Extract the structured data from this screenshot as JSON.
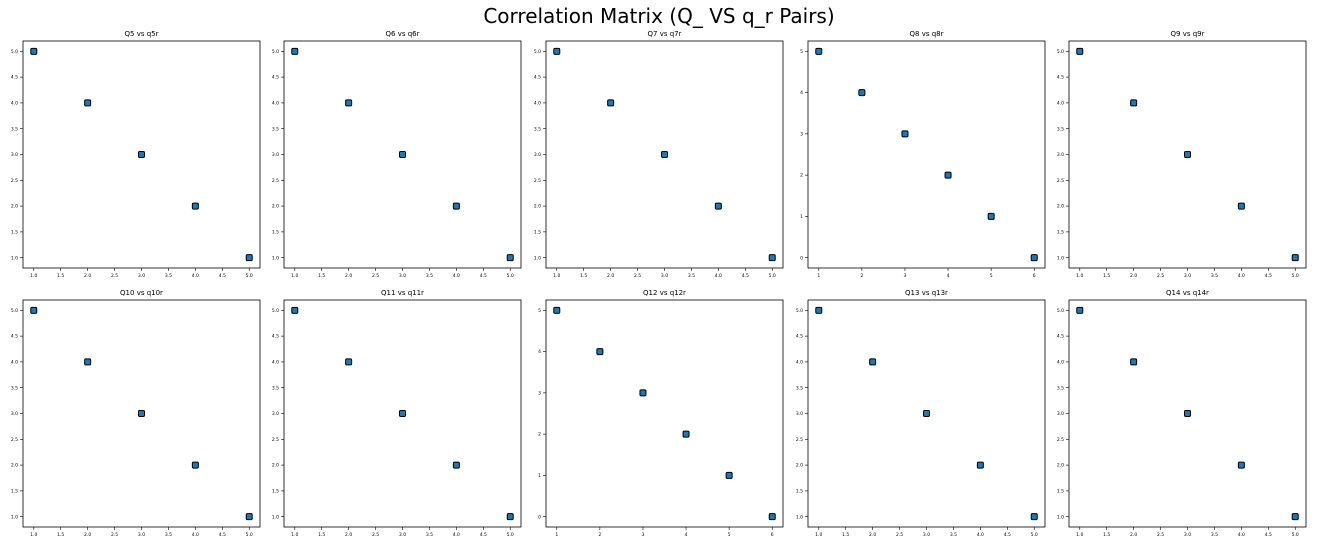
{
  "title": "Correlation Matrix (Q_ VS q_r Pairs)",
  "style": {
    "marker_color": "#1f77b4",
    "marker_edge": "#000000"
  },
  "chart_data": [
    {
      "type": "scatter",
      "title": "Q5 vs q5r",
      "x": [
        1,
        2,
        3,
        4,
        5
      ],
      "y": [
        5,
        4,
        3,
        2,
        1
      ],
      "xlim": [
        0.8,
        5.2
      ],
      "ylim": [
        0.8,
        5.2
      ],
      "xticks": [
        "1.0",
        "1.5",
        "2.0",
        "2.5",
        "3.0",
        "3.5",
        "4.0",
        "4.5",
        "5.0"
      ],
      "yticks": [
        "1.0",
        "1.5",
        "2.0",
        "2.5",
        "3.0",
        "3.5",
        "4.0",
        "4.5",
        "5.0"
      ]
    },
    {
      "type": "scatter",
      "title": "Q6 vs q6r",
      "x": [
        1,
        2,
        3,
        4,
        5
      ],
      "y": [
        5,
        4,
        3,
        2,
        1
      ],
      "xlim": [
        0.8,
        5.2
      ],
      "ylim": [
        0.8,
        5.2
      ],
      "xticks": [
        "1.0",
        "1.5",
        "2.0",
        "2.5",
        "3.0",
        "3.5",
        "4.0",
        "4.5",
        "5.0"
      ],
      "yticks": [
        "1.0",
        "1.5",
        "2.0",
        "2.5",
        "3.0",
        "3.5",
        "4.0",
        "4.5",
        "5.0"
      ]
    },
    {
      "type": "scatter",
      "title": "Q7 vs q7r",
      "x": [
        1,
        2,
        3,
        4,
        5
      ],
      "y": [
        5,
        4,
        3,
        2,
        1
      ],
      "xlim": [
        0.8,
        5.2
      ],
      "ylim": [
        0.8,
        5.2
      ],
      "xticks": [
        "1.0",
        "1.5",
        "2.0",
        "2.5",
        "3.0",
        "3.5",
        "4.0",
        "4.5",
        "5.0"
      ],
      "yticks": [
        "1.0",
        "1.5",
        "2.0",
        "2.5",
        "3.0",
        "3.5",
        "4.0",
        "4.5",
        "5.0"
      ]
    },
    {
      "type": "scatter",
      "title": "Q8 vs q8r",
      "x": [
        1,
        2,
        3,
        4,
        5,
        6
      ],
      "y": [
        5,
        4,
        3,
        2,
        1,
        0
      ],
      "xlim": [
        0.75,
        6.25
      ],
      "ylim": [
        -0.25,
        5.25
      ],
      "xticks": [
        "1",
        "2",
        "3",
        "4",
        "5",
        "6"
      ],
      "yticks": [
        "0",
        "1",
        "2",
        "3",
        "4",
        "5"
      ]
    },
    {
      "type": "scatter",
      "title": "Q9 vs q9r",
      "x": [
        1,
        2,
        3,
        4,
        5
      ],
      "y": [
        5,
        4,
        3,
        2,
        1
      ],
      "xlim": [
        0.8,
        5.2
      ],
      "ylim": [
        0.8,
        5.2
      ],
      "xticks": [
        "1.0",
        "1.5",
        "2.0",
        "2.5",
        "3.0",
        "3.5",
        "4.0",
        "4.5",
        "5.0"
      ],
      "yticks": [
        "1.0",
        "1.5",
        "2.0",
        "2.5",
        "3.0",
        "3.5",
        "4.0",
        "4.5",
        "5.0"
      ]
    },
    {
      "type": "scatter",
      "title": "Q10 vs q10r",
      "x": [
        1,
        2,
        3,
        4,
        5
      ],
      "y": [
        5,
        4,
        3,
        2,
        1
      ],
      "xlim": [
        0.8,
        5.2
      ],
      "ylim": [
        0.8,
        5.2
      ],
      "xticks": [
        "1.0",
        "1.5",
        "2.0",
        "2.5",
        "3.0",
        "3.5",
        "4.0",
        "4.5",
        "5.0"
      ],
      "yticks": [
        "1.0",
        "1.5",
        "2.0",
        "2.5",
        "3.0",
        "3.5",
        "4.0",
        "4.5",
        "5.0"
      ]
    },
    {
      "type": "scatter",
      "title": "Q11 vs q11r",
      "x": [
        1,
        2,
        3,
        4,
        5
      ],
      "y": [
        5,
        4,
        3,
        2,
        1
      ],
      "xlim": [
        0.8,
        5.2
      ],
      "ylim": [
        0.8,
        5.2
      ],
      "xticks": [
        "1.0",
        "1.5",
        "2.0",
        "2.5",
        "3.0",
        "3.5",
        "4.0",
        "4.5",
        "5.0"
      ],
      "yticks": [
        "1.0",
        "1.5",
        "2.0",
        "2.5",
        "3.0",
        "3.5",
        "4.0",
        "4.5",
        "5.0"
      ]
    },
    {
      "type": "scatter",
      "title": "Q12 vs q12r",
      "x": [
        1,
        2,
        3,
        4,
        5,
        6
      ],
      "y": [
        5,
        4,
        3,
        2,
        1,
        0
      ],
      "xlim": [
        0.75,
        6.25
      ],
      "ylim": [
        -0.25,
        5.25
      ],
      "xticks": [
        "1",
        "2",
        "3",
        "4",
        "5",
        "6"
      ],
      "yticks": [
        "0",
        "1",
        "2",
        "3",
        "4",
        "5"
      ]
    },
    {
      "type": "scatter",
      "title": "Q13 vs q13r",
      "x": [
        1,
        2,
        3,
        4,
        5
      ],
      "y": [
        5,
        4,
        3,
        2,
        1
      ],
      "xlim": [
        0.8,
        5.2
      ],
      "ylim": [
        0.8,
        5.2
      ],
      "xticks": [
        "1.0",
        "1.5",
        "2.0",
        "2.5",
        "3.0",
        "3.5",
        "4.0",
        "4.5",
        "5.0"
      ],
      "yticks": [
        "1.0",
        "1.5",
        "2.0",
        "2.5",
        "3.0",
        "3.5",
        "4.0",
        "4.5",
        "5.0"
      ]
    },
    {
      "type": "scatter",
      "title": "Q14 vs q14r",
      "x": [
        1,
        2,
        3,
        4,
        5
      ],
      "y": [
        5,
        4,
        3,
        2,
        1
      ],
      "xlim": [
        0.8,
        5.2
      ],
      "ylim": [
        0.8,
        5.2
      ],
      "xticks": [
        "1.0",
        "1.5",
        "2.0",
        "2.5",
        "3.0",
        "3.5",
        "4.0",
        "4.5",
        "5.0"
      ],
      "yticks": [
        "1.0",
        "1.5",
        "2.0",
        "2.5",
        "3.0",
        "3.5",
        "4.0",
        "4.5",
        "5.0"
      ]
    }
  ]
}
